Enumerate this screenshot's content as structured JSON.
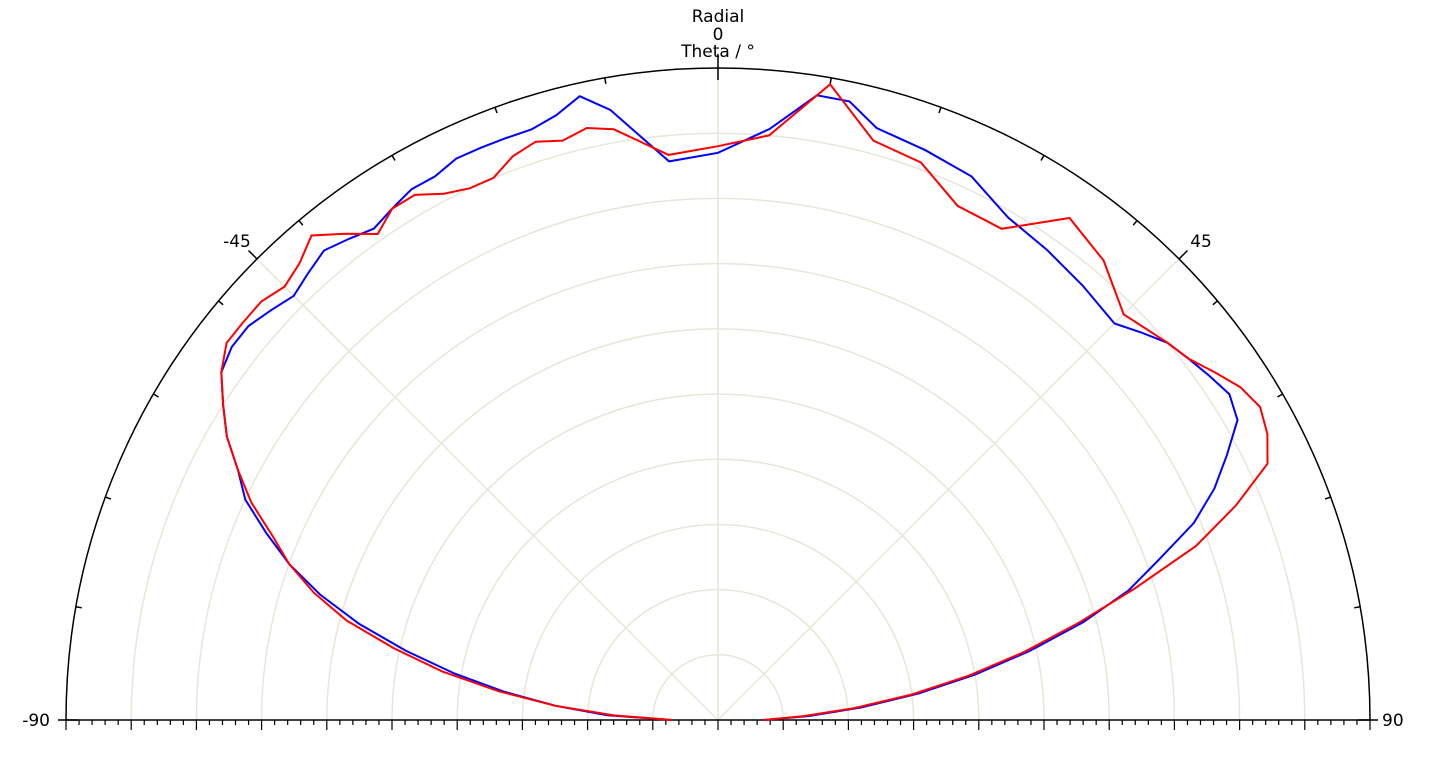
{
  "chart_data": {
    "type": "polar-half",
    "title": "Radial",
    "angle_label": "Theta / °",
    "angle_range": [
      -90,
      90
    ],
    "angle_tick_labels": [
      {
        "angle": -90,
        "text": "-90"
      },
      {
        "angle": -45,
        "text": "-45"
      },
      {
        "angle": 0,
        "text": "0"
      },
      {
        "angle": 45,
        "text": "45"
      },
      {
        "angle": 90,
        "text": "90"
      }
    ],
    "r_max": 1.0,
    "r_grid_count": 10,
    "angle_grid": [
      -45,
      0,
      45
    ],
    "minor_angle_tick_step": 10,
    "grid": true,
    "colors": {
      "grid": "#e8e6d8",
      "axis": "#000000"
    },
    "series": [
      {
        "color": "#0000ff",
        "points": [
          [
            -90,
            0.07
          ],
          [
            -87.5,
            0.17
          ],
          [
            -85,
            0.25
          ],
          [
            -82.5,
            0.33
          ],
          [
            -80,
            0.41
          ],
          [
            -77.5,
            0.49
          ],
          [
            -75,
            0.57
          ],
          [
            -72.5,
            0.64
          ],
          [
            -70,
            0.7
          ],
          [
            -67.5,
            0.75
          ],
          [
            -65,
            0.8
          ],
          [
            -62.5,
            0.83
          ],
          [
            -60,
            0.87
          ],
          [
            -57.5,
            0.9
          ],
          [
            -55,
            0.93
          ],
          [
            -52.5,
            0.94
          ],
          [
            -50,
            0.94
          ],
          [
            -47.5,
            0.93
          ],
          [
            -45,
            0.92
          ],
          [
            -42.5,
            0.93
          ],
          [
            -40,
            0.94
          ],
          [
            -37.5,
            0.93
          ],
          [
            -35,
            0.92
          ],
          [
            -32.5,
            0.93
          ],
          [
            -30,
            0.94
          ],
          [
            -27.5,
            0.94
          ],
          [
            -25,
            0.95
          ],
          [
            -22.5,
            0.95
          ],
          [
            -20,
            0.95
          ],
          [
            -17.5,
            0.95
          ],
          [
            -15,
            0.96
          ],
          [
            -12.5,
            0.98
          ],
          [
            -10,
            0.95
          ],
          [
            -5,
            0.86
          ],
          [
            0,
            0.87
          ],
          [
            5,
            0.91
          ],
          [
            9,
            0.97
          ],
          [
            12,
            0.97
          ],
          [
            15,
            0.94
          ],
          [
            20,
            0.93
          ],
          [
            25,
            0.92
          ],
          [
            30,
            0.89
          ],
          [
            35,
            0.88
          ],
          [
            40,
            0.87
          ],
          [
            45,
            0.86
          ],
          [
            47.5,
            0.88
          ],
          [
            50,
            0.9
          ],
          [
            52.5,
            0.91
          ],
          [
            55,
            0.92
          ],
          [
            57.5,
            0.93
          ],
          [
            60,
            0.92
          ],
          [
            62.5,
            0.88
          ],
          [
            65,
            0.84
          ],
          [
            67.5,
            0.79
          ],
          [
            70,
            0.72
          ],
          [
            72.5,
            0.66
          ],
          [
            75,
            0.58
          ],
          [
            77.5,
            0.49
          ],
          [
            80,
            0.4
          ],
          [
            82.5,
            0.31
          ],
          [
            85,
            0.22
          ],
          [
            87.5,
            0.14
          ],
          [
            90,
            0.07
          ]
        ]
      },
      {
        "color": "#ff0000",
        "points": [
          [
            -90,
            0.07
          ],
          [
            -87.5,
            0.16
          ],
          [
            -85,
            0.25
          ],
          [
            -82.5,
            0.34
          ],
          [
            -80,
            0.43
          ],
          [
            -77.5,
            0.51
          ],
          [
            -75,
            0.59
          ],
          [
            -72.5,
            0.65
          ],
          [
            -70,
            0.7
          ],
          [
            -67.5,
            0.74
          ],
          [
            -65,
            0.79
          ],
          [
            -62.5,
            0.83
          ],
          [
            -60,
            0.87
          ],
          [
            -57.5,
            0.9
          ],
          [
            -55,
            0.93
          ],
          [
            -52.5,
            0.95
          ],
          [
            -50,
            0.95
          ],
          [
            -47.5,
            0.95
          ],
          [
            -45,
            0.94
          ],
          [
            -42.5,
            0.95
          ],
          [
            -40,
            0.97
          ],
          [
            -37.5,
            0.94
          ],
          [
            -35,
            0.91
          ],
          [
            -32.5,
            0.93
          ],
          [
            -30,
            0.93
          ],
          [
            -27.5,
            0.91
          ],
          [
            -25,
            0.9
          ],
          [
            -22.5,
            0.9
          ],
          [
            -20,
            0.92
          ],
          [
            -17.5,
            0.93
          ],
          [
            -15,
            0.92
          ],
          [
            -12.5,
            0.93
          ],
          [
            -10,
            0.92
          ],
          [
            -5,
            0.87
          ],
          [
            0,
            0.88
          ],
          [
            5,
            0.9
          ],
          [
            10,
            0.99
          ],
          [
            15,
            0.92
          ],
          [
            20,
            0.91
          ],
          [
            25,
            0.87
          ],
          [
            30,
            0.87
          ],
          [
            35,
            0.94
          ],
          [
            40,
            0.92
          ],
          [
            45,
            0.88
          ],
          [
            50,
            0.9
          ],
          [
            52.5,
            0.91
          ],
          [
            55,
            0.93
          ],
          [
            57.5,
            0.95
          ],
          [
            60,
            0.96
          ],
          [
            62.5,
            0.95
          ],
          [
            65,
            0.93
          ],
          [
            67.5,
            0.86
          ],
          [
            70,
            0.78
          ],
          [
            72.5,
            0.67
          ],
          [
            75,
            0.57
          ],
          [
            77.5,
            0.48
          ],
          [
            80,
            0.39
          ],
          [
            82.5,
            0.3
          ],
          [
            85,
            0.21
          ],
          [
            87.5,
            0.13
          ],
          [
            90,
            0.07
          ]
        ]
      }
    ]
  }
}
